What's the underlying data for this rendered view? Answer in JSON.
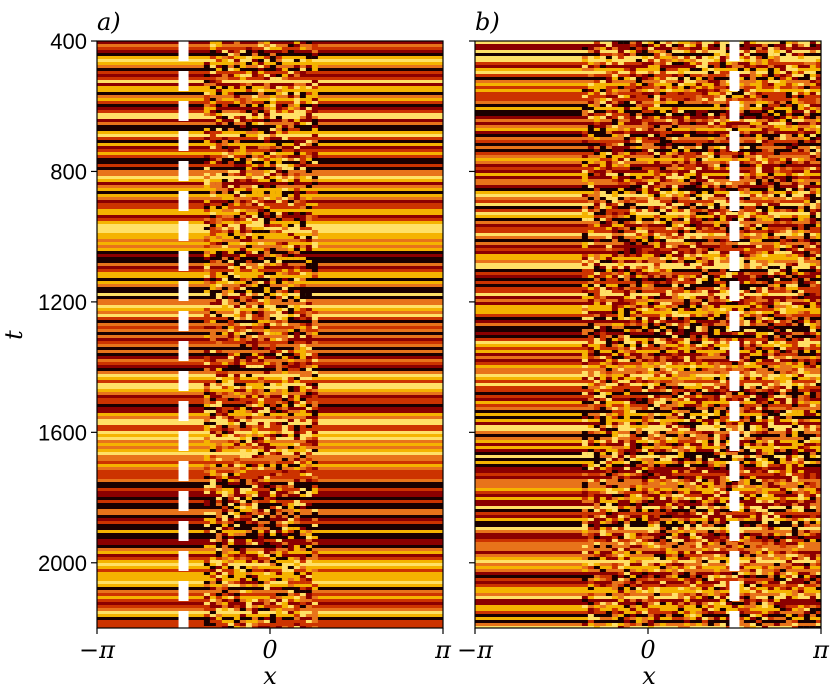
{
  "chart_data": [
    {
      "type": "heatmap",
      "panel_label": "a)",
      "xlabel": "x",
      "ylabel": "t",
      "xlim": [
        -3.14159,
        3.14159
      ],
      "ylim": [
        400,
        2200
      ],
      "y_reversed": true,
      "xticks": [
        {
          "value": -3.14159,
          "label": "−π"
        },
        {
          "value": 0,
          "label": "0"
        },
        {
          "value": 3.14159,
          "label": "π"
        }
      ],
      "yticks": [
        {
          "value": 400,
          "label": "400"
        },
        {
          "value": 800,
          "label": "800"
        },
        {
          "value": 1200,
          "label": "1200"
        },
        {
          "value": 1600,
          "label": "1600"
        },
        {
          "value": 2000,
          "label": "2000"
        }
      ],
      "dashed_line_x": -1.57,
      "colormap": [
        "#1a0000",
        "#8b0000",
        "#cc3300",
        "#e8731a",
        "#f5b300",
        "#ffe066"
      ],
      "spatially_structured_region_x": [
        -1.2,
        0.8
      ]
    },
    {
      "type": "heatmap",
      "panel_label": "b)",
      "xlabel": "x",
      "ylabel": "",
      "xlim": [
        -3.14159,
        3.14159
      ],
      "ylim": [
        400,
        2200
      ],
      "y_reversed": true,
      "xticks": [
        {
          "value": -3.14159,
          "label": "−π"
        },
        {
          "value": 0,
          "label": "0"
        },
        {
          "value": 3.14159,
          "label": "π"
        }
      ],
      "yticks": [
        {
          "value": 400,
          "label": ""
        },
        {
          "value": 800,
          "label": ""
        },
        {
          "value": 1200,
          "label": ""
        },
        {
          "value": 1600,
          "label": ""
        },
        {
          "value": 2000,
          "label": ""
        }
      ],
      "dashed_line_x": 1.57,
      "colormap": [
        "#1a0000",
        "#8b0000",
        "#cc3300",
        "#e8731a",
        "#f5b300",
        "#ffe066"
      ],
      "spatially_structured_region_x": [
        -1.2,
        3.14159
      ]
    }
  ]
}
